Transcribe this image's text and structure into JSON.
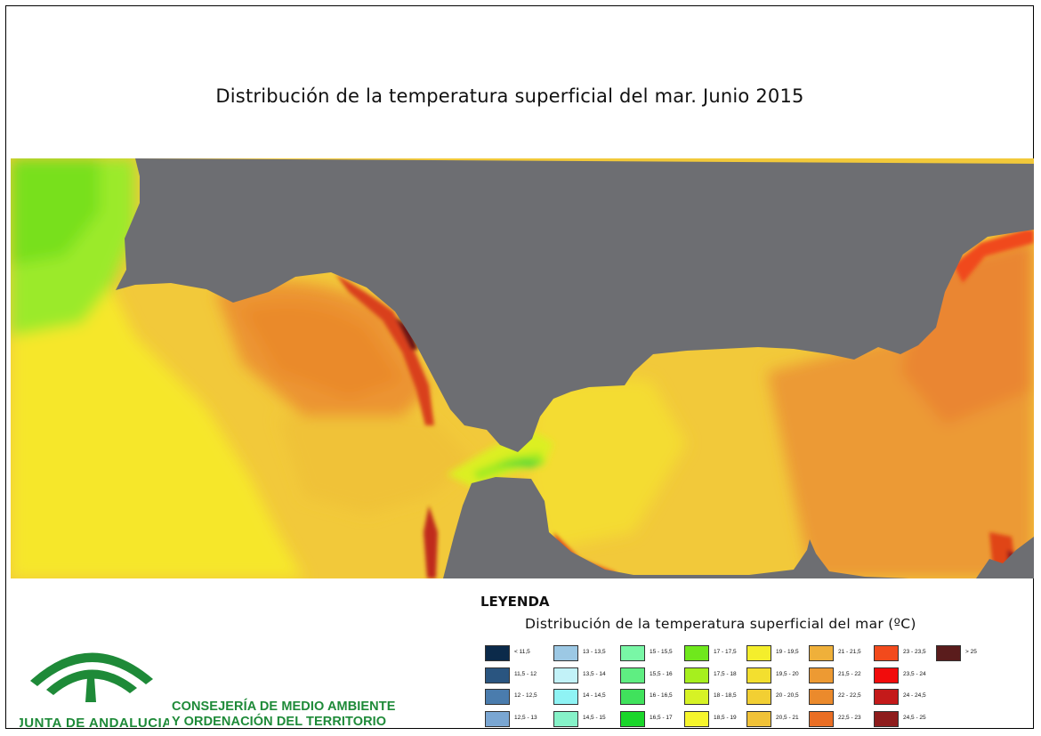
{
  "title": "Distribución de la temperatura superficial del mar. Junio 2015",
  "legend": {
    "heading": "LEYENDA",
    "subtitle": "Distribución de la temperatura superficial del mar (ºC)",
    "columns": [
      [
        {
          "label": "< 11,5",
          "color": "#0b2a4a"
        },
        {
          "label": "11,5 - 12",
          "color": "#2a5580"
        },
        {
          "label": "12 - 12,5",
          "color": "#4a7cad"
        },
        {
          "label": "12,5 - 13",
          "color": "#7aa6d2"
        }
      ],
      [
        {
          "label": "13 - 13,5",
          "color": "#9cc8e4"
        },
        {
          "label": "13,5 - 14",
          "color": "#c2f2f8"
        },
        {
          "label": "14 - 14,5",
          "color": "#8ff3f4"
        },
        {
          "label": "14,5 - 15",
          "color": "#86f2c8"
        }
      ],
      [
        {
          "label": "15 - 15,5",
          "color": "#79f7a6"
        },
        {
          "label": "15,5 - 16",
          "color": "#5fee82"
        },
        {
          "label": "16 - 16,5",
          "color": "#40e25c"
        },
        {
          "label": "16,5 - 17",
          "color": "#1ad62a"
        }
      ],
      [
        {
          "label": "17 - 17,5",
          "color": "#6fe81c"
        },
        {
          "label": "17,5 - 18",
          "color": "#a6ef1e"
        },
        {
          "label": "18 - 18,5",
          "color": "#d6f225"
        },
        {
          "label": "18,5 - 19",
          "color": "#f6f52c"
        }
      ],
      [
        {
          "label": "19 - 19,5",
          "color": "#f4ee2c"
        },
        {
          "label": "19,5 - 20",
          "color": "#f3df2f"
        },
        {
          "label": "20 - 20,5",
          "color": "#f2cf33"
        },
        {
          "label": "20,5 - 21",
          "color": "#f1c238"
        }
      ],
      [
        {
          "label": "21 - 21,5",
          "color": "#efb03a"
        },
        {
          "label": "21,5 - 22",
          "color": "#ed9a33"
        },
        {
          "label": "22 - 22,5",
          "color": "#eb8a2c"
        },
        {
          "label": "22,5 - 23",
          "color": "#ea6e24"
        }
      ],
      [
        {
          "label": "23 - 23,5",
          "color": "#f24a1c"
        },
        {
          "label": "23,5 - 24",
          "color": "#f20c0c"
        },
        {
          "label": "24 - 24,5",
          "color": "#c41a1a"
        },
        {
          "label": "24,5 - 25",
          "color": "#8e1c1c"
        }
      ],
      [
        {
          "label": "> 25",
          "color": "#5a1c1c"
        }
      ]
    ]
  },
  "map": {
    "land_color": "#6d6e72",
    "sea_base_color": "#f2cf33"
  },
  "organization": {
    "logo_text": "JUNTA DE ANDALUCIA",
    "line1": "CONSEJERÍA DE MEDIO AMBIENTE",
    "line2": "Y ORDENACIÓN DEL TERRITORIO",
    "color": "#1e8a38"
  }
}
